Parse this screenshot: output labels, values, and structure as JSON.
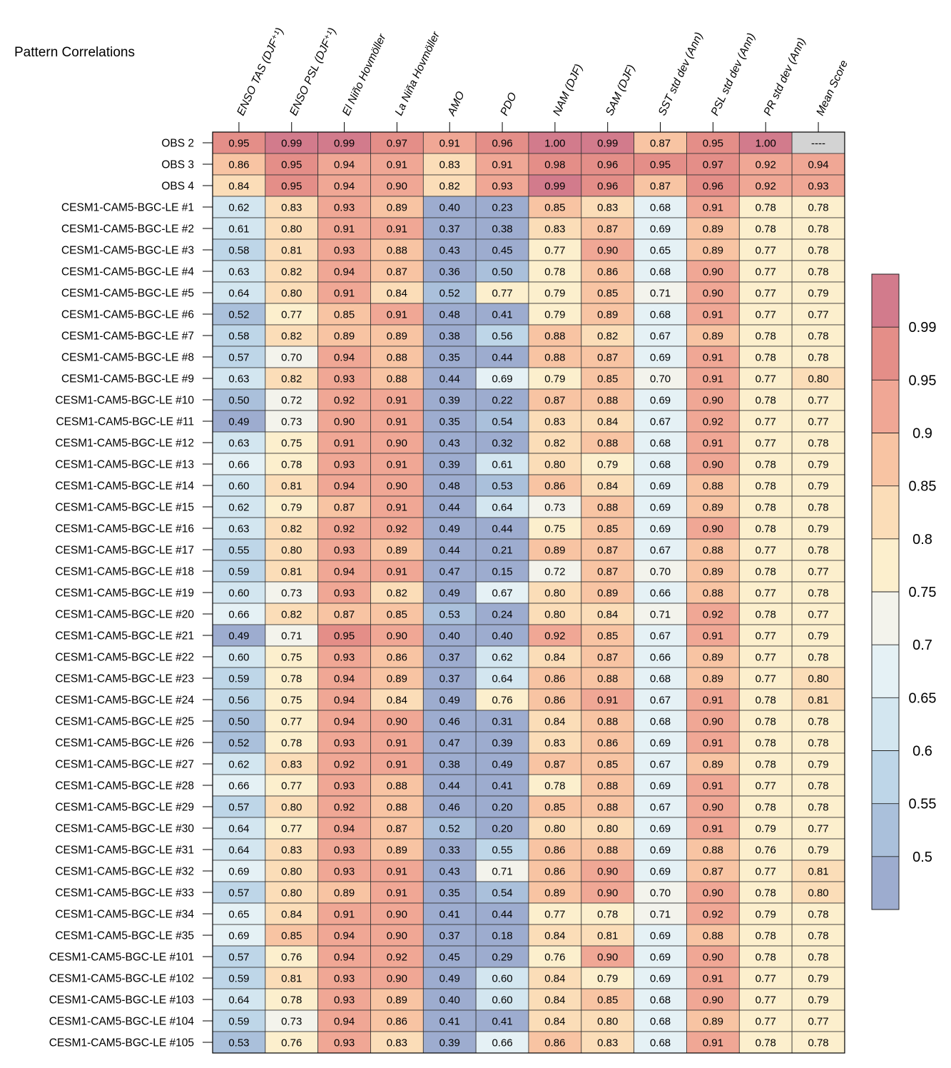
{
  "chart_data": {
    "type": "heatmap",
    "title": "Pattern Correlations",
    "columns": [
      "ENSO TAS (DJF⁺¹)",
      "ENSO PSL (DJF⁺¹)",
      "El Niño Hovmöller",
      "La Niña Hovmöller",
      "AMO",
      "PDO",
      "NAM (DJF)",
      "SAM (DJF)",
      "SST std dev (Ann)",
      "PSL std dev (Ann)",
      "PR std dev (Ann)",
      "Mean Score"
    ],
    "rows": [
      {
        "label": "OBS 2",
        "values": [
          "0.95",
          "0.99",
          "0.99",
          "0.97",
          "0.91",
          "0.96",
          "1.00",
          "0.99",
          "0.87",
          "0.95",
          "1.00",
          "----"
        ]
      },
      {
        "label": "OBS 3",
        "values": [
          "0.86",
          "0.95",
          "0.94",
          "0.91",
          "0.83",
          "0.91",
          "0.98",
          "0.96",
          "0.95",
          "0.97",
          "0.92",
          "0.94"
        ]
      },
      {
        "label": "OBS 4",
        "values": [
          "0.84",
          "0.95",
          "0.94",
          "0.90",
          "0.82",
          "0.93",
          "0.99",
          "0.96",
          "0.87",
          "0.96",
          "0.92",
          "0.93"
        ]
      },
      {
        "label": "CESM1-CAM5-BGC-LE #1",
        "values": [
          "0.62",
          "0.83",
          "0.93",
          "0.89",
          "0.40",
          "0.23",
          "0.85",
          "0.83",
          "0.68",
          "0.91",
          "0.78",
          "0.78"
        ]
      },
      {
        "label": "CESM1-CAM5-BGC-LE #2",
        "values": [
          "0.61",
          "0.80",
          "0.91",
          "0.91",
          "0.37",
          "0.38",
          "0.83",
          "0.87",
          "0.69",
          "0.89",
          "0.78",
          "0.78"
        ]
      },
      {
        "label": "CESM1-CAM5-BGC-LE #3",
        "values": [
          "0.58",
          "0.81",
          "0.93",
          "0.88",
          "0.43",
          "0.45",
          "0.77",
          "0.90",
          "0.65",
          "0.89",
          "0.77",
          "0.78"
        ]
      },
      {
        "label": "CESM1-CAM5-BGC-LE #4",
        "values": [
          "0.63",
          "0.82",
          "0.94",
          "0.87",
          "0.36",
          "0.50",
          "0.78",
          "0.86",
          "0.68",
          "0.90",
          "0.77",
          "0.78"
        ]
      },
      {
        "label": "CESM1-CAM5-BGC-LE #5",
        "values": [
          "0.64",
          "0.80",
          "0.91",
          "0.84",
          "0.52",
          "0.77",
          "0.79",
          "0.85",
          "0.71",
          "0.90",
          "0.77",
          "0.79"
        ]
      },
      {
        "label": "CESM1-CAM5-BGC-LE #6",
        "values": [
          "0.52",
          "0.77",
          "0.85",
          "0.91",
          "0.48",
          "0.41",
          "0.79",
          "0.89",
          "0.68",
          "0.91",
          "0.77",
          "0.77"
        ]
      },
      {
        "label": "CESM1-CAM5-BGC-LE #7",
        "values": [
          "0.58",
          "0.82",
          "0.89",
          "0.89",
          "0.38",
          "0.56",
          "0.88",
          "0.82",
          "0.67",
          "0.89",
          "0.78",
          "0.78"
        ]
      },
      {
        "label": "CESM1-CAM5-BGC-LE #8",
        "values": [
          "0.57",
          "0.70",
          "0.94",
          "0.88",
          "0.35",
          "0.44",
          "0.88",
          "0.87",
          "0.69",
          "0.91",
          "0.78",
          "0.78"
        ]
      },
      {
        "label": "CESM1-CAM5-BGC-LE #9",
        "values": [
          "0.63",
          "0.82",
          "0.93",
          "0.88",
          "0.44",
          "0.69",
          "0.79",
          "0.85",
          "0.70",
          "0.91",
          "0.77",
          "0.80"
        ]
      },
      {
        "label": "CESM1-CAM5-BGC-LE #10",
        "values": [
          "0.50",
          "0.72",
          "0.92",
          "0.91",
          "0.39",
          "0.22",
          "0.87",
          "0.88",
          "0.69",
          "0.90",
          "0.78",
          "0.77"
        ]
      },
      {
        "label": "CESM1-CAM5-BGC-LE #11",
        "values": [
          "0.49",
          "0.73",
          "0.90",
          "0.91",
          "0.35",
          "0.54",
          "0.83",
          "0.84",
          "0.67",
          "0.92",
          "0.77",
          "0.77"
        ]
      },
      {
        "label": "CESM1-CAM5-BGC-LE #12",
        "values": [
          "0.63",
          "0.75",
          "0.91",
          "0.90",
          "0.43",
          "0.32",
          "0.82",
          "0.88",
          "0.68",
          "0.91",
          "0.77",
          "0.78"
        ]
      },
      {
        "label": "CESM1-CAM5-BGC-LE #13",
        "values": [
          "0.66",
          "0.78",
          "0.93",
          "0.91",
          "0.39",
          "0.61",
          "0.80",
          "0.79",
          "0.68",
          "0.90",
          "0.78",
          "0.79"
        ]
      },
      {
        "label": "CESM1-CAM5-BGC-LE #14",
        "values": [
          "0.60",
          "0.81",
          "0.94",
          "0.90",
          "0.48",
          "0.53",
          "0.86",
          "0.84",
          "0.69",
          "0.88",
          "0.78",
          "0.79"
        ]
      },
      {
        "label": "CESM1-CAM5-BGC-LE #15",
        "values": [
          "0.62",
          "0.79",
          "0.87",
          "0.91",
          "0.44",
          "0.64",
          "0.73",
          "0.88",
          "0.69",
          "0.89",
          "0.78",
          "0.78"
        ]
      },
      {
        "label": "CESM1-CAM5-BGC-LE #16",
        "values": [
          "0.63",
          "0.82",
          "0.92",
          "0.92",
          "0.49",
          "0.44",
          "0.75",
          "0.85",
          "0.69",
          "0.90",
          "0.78",
          "0.79"
        ]
      },
      {
        "label": "CESM1-CAM5-BGC-LE #17",
        "values": [
          "0.55",
          "0.80",
          "0.93",
          "0.89",
          "0.44",
          "0.21",
          "0.89",
          "0.87",
          "0.67",
          "0.88",
          "0.77",
          "0.78"
        ]
      },
      {
        "label": "CESM1-CAM5-BGC-LE #18",
        "values": [
          "0.59",
          "0.81",
          "0.94",
          "0.91",
          "0.47",
          "0.15",
          "0.72",
          "0.87",
          "0.70",
          "0.89",
          "0.78",
          "0.77"
        ]
      },
      {
        "label": "CESM1-CAM5-BGC-LE #19",
        "values": [
          "0.60",
          "0.73",
          "0.93",
          "0.82",
          "0.49",
          "0.67",
          "0.80",
          "0.89",
          "0.66",
          "0.88",
          "0.77",
          "0.78"
        ]
      },
      {
        "label": "CESM1-CAM5-BGC-LE #20",
        "values": [
          "0.66",
          "0.82",
          "0.87",
          "0.85",
          "0.53",
          "0.24",
          "0.80",
          "0.84",
          "0.71",
          "0.92",
          "0.78",
          "0.77"
        ]
      },
      {
        "label": "CESM1-CAM5-BGC-LE #21",
        "values": [
          "0.49",
          "0.71",
          "0.95",
          "0.90",
          "0.40",
          "0.40",
          "0.92",
          "0.85",
          "0.67",
          "0.91",
          "0.77",
          "0.79"
        ]
      },
      {
        "label": "CESM1-CAM5-BGC-LE #22",
        "values": [
          "0.60",
          "0.75",
          "0.93",
          "0.86",
          "0.37",
          "0.62",
          "0.84",
          "0.87",
          "0.66",
          "0.89",
          "0.77",
          "0.78"
        ]
      },
      {
        "label": "CESM1-CAM5-BGC-LE #23",
        "values": [
          "0.59",
          "0.78",
          "0.94",
          "0.89",
          "0.37",
          "0.64",
          "0.86",
          "0.88",
          "0.68",
          "0.89",
          "0.77",
          "0.80"
        ]
      },
      {
        "label": "CESM1-CAM5-BGC-LE #24",
        "values": [
          "0.56",
          "0.75",
          "0.94",
          "0.84",
          "0.49",
          "0.76",
          "0.86",
          "0.91",
          "0.67",
          "0.91",
          "0.78",
          "0.81"
        ]
      },
      {
        "label": "CESM1-CAM5-BGC-LE #25",
        "values": [
          "0.50",
          "0.77",
          "0.94",
          "0.90",
          "0.46",
          "0.31",
          "0.84",
          "0.88",
          "0.68",
          "0.90",
          "0.78",
          "0.78"
        ]
      },
      {
        "label": "CESM1-CAM5-BGC-LE #26",
        "values": [
          "0.52",
          "0.78",
          "0.93",
          "0.91",
          "0.47",
          "0.39",
          "0.83",
          "0.86",
          "0.69",
          "0.91",
          "0.78",
          "0.78"
        ]
      },
      {
        "label": "CESM1-CAM5-BGC-LE #27",
        "values": [
          "0.62",
          "0.83",
          "0.92",
          "0.91",
          "0.38",
          "0.49",
          "0.87",
          "0.85",
          "0.67",
          "0.89",
          "0.78",
          "0.79"
        ]
      },
      {
        "label": "CESM1-CAM5-BGC-LE #28",
        "values": [
          "0.66",
          "0.77",
          "0.93",
          "0.88",
          "0.44",
          "0.41",
          "0.78",
          "0.88",
          "0.69",
          "0.91",
          "0.77",
          "0.78"
        ]
      },
      {
        "label": "CESM1-CAM5-BGC-LE #29",
        "values": [
          "0.57",
          "0.80",
          "0.92",
          "0.88",
          "0.46",
          "0.20",
          "0.85",
          "0.88",
          "0.67",
          "0.90",
          "0.78",
          "0.78"
        ]
      },
      {
        "label": "CESM1-CAM5-BGC-LE #30",
        "values": [
          "0.64",
          "0.77",
          "0.94",
          "0.87",
          "0.52",
          "0.20",
          "0.80",
          "0.80",
          "0.69",
          "0.91",
          "0.79",
          "0.77"
        ]
      },
      {
        "label": "CESM1-CAM5-BGC-LE #31",
        "values": [
          "0.64",
          "0.83",
          "0.93",
          "0.89",
          "0.33",
          "0.55",
          "0.86",
          "0.88",
          "0.69",
          "0.88",
          "0.76",
          "0.79"
        ]
      },
      {
        "label": "CESM1-CAM5-BGC-LE #32",
        "values": [
          "0.69",
          "0.80",
          "0.93",
          "0.91",
          "0.43",
          "0.71",
          "0.86",
          "0.90",
          "0.69",
          "0.87",
          "0.77",
          "0.81"
        ]
      },
      {
        "label": "CESM1-CAM5-BGC-LE #33",
        "values": [
          "0.57",
          "0.80",
          "0.89",
          "0.91",
          "0.35",
          "0.54",
          "0.89",
          "0.90",
          "0.70",
          "0.90",
          "0.78",
          "0.80"
        ]
      },
      {
        "label": "CESM1-CAM5-BGC-LE #34",
        "values": [
          "0.65",
          "0.84",
          "0.91",
          "0.90",
          "0.41",
          "0.44",
          "0.77",
          "0.78",
          "0.71",
          "0.92",
          "0.79",
          "0.78"
        ]
      },
      {
        "label": "CESM1-CAM5-BGC-LE #35",
        "values": [
          "0.69",
          "0.85",
          "0.94",
          "0.90",
          "0.37",
          "0.18",
          "0.84",
          "0.81",
          "0.69",
          "0.88",
          "0.78",
          "0.78"
        ]
      },
      {
        "label": "CESM1-CAM5-BGC-LE #101",
        "values": [
          "0.57",
          "0.76",
          "0.94",
          "0.92",
          "0.45",
          "0.29",
          "0.76",
          "0.90",
          "0.69",
          "0.90",
          "0.78",
          "0.78"
        ]
      },
      {
        "label": "CESM1-CAM5-BGC-LE #102",
        "values": [
          "0.59",
          "0.81",
          "0.93",
          "0.90",
          "0.49",
          "0.60",
          "0.84",
          "0.79",
          "0.69",
          "0.91",
          "0.77",
          "0.79"
        ]
      },
      {
        "label": "CESM1-CAM5-BGC-LE #103",
        "values": [
          "0.64",
          "0.78",
          "0.93",
          "0.89",
          "0.40",
          "0.60",
          "0.84",
          "0.85",
          "0.68",
          "0.90",
          "0.77",
          "0.79"
        ]
      },
      {
        "label": "CESM1-CAM5-BGC-LE #104",
        "values": [
          "0.59",
          "0.73",
          "0.94",
          "0.86",
          "0.41",
          "0.41",
          "0.84",
          "0.80",
          "0.68",
          "0.89",
          "0.77",
          "0.77"
        ]
      },
      {
        "label": "CESM1-CAM5-BGC-LE #105",
        "values": [
          "0.53",
          "0.76",
          "0.93",
          "0.83",
          "0.39",
          "0.66",
          "0.86",
          "0.83",
          "0.68",
          "0.91",
          "0.78",
          "0.78"
        ]
      }
    ],
    "colorbar": {
      "tick_labels": [
        "0.99",
        "0.95",
        "0.9",
        "0.85",
        "0.8",
        "0.75",
        "0.7",
        "0.65",
        "0.6",
        "0.55",
        "0.5"
      ],
      "thresholds": [
        0.5,
        0.55,
        0.6,
        0.65,
        0.7,
        0.75,
        0.8,
        0.85,
        0.9,
        0.95,
        0.99
      ],
      "colors": [
        "#9daccf",
        "#aac0db",
        "#bed6e8",
        "#d3e6f0",
        "#e5f1f5",
        "#f3f3ec",
        "#fcefcd",
        "#fbddb8",
        "#f8c4a3",
        "#f0a795",
        "#e48e88",
        "#d27b8c"
      ],
      "missing_color": "#d3d3d3"
    }
  }
}
